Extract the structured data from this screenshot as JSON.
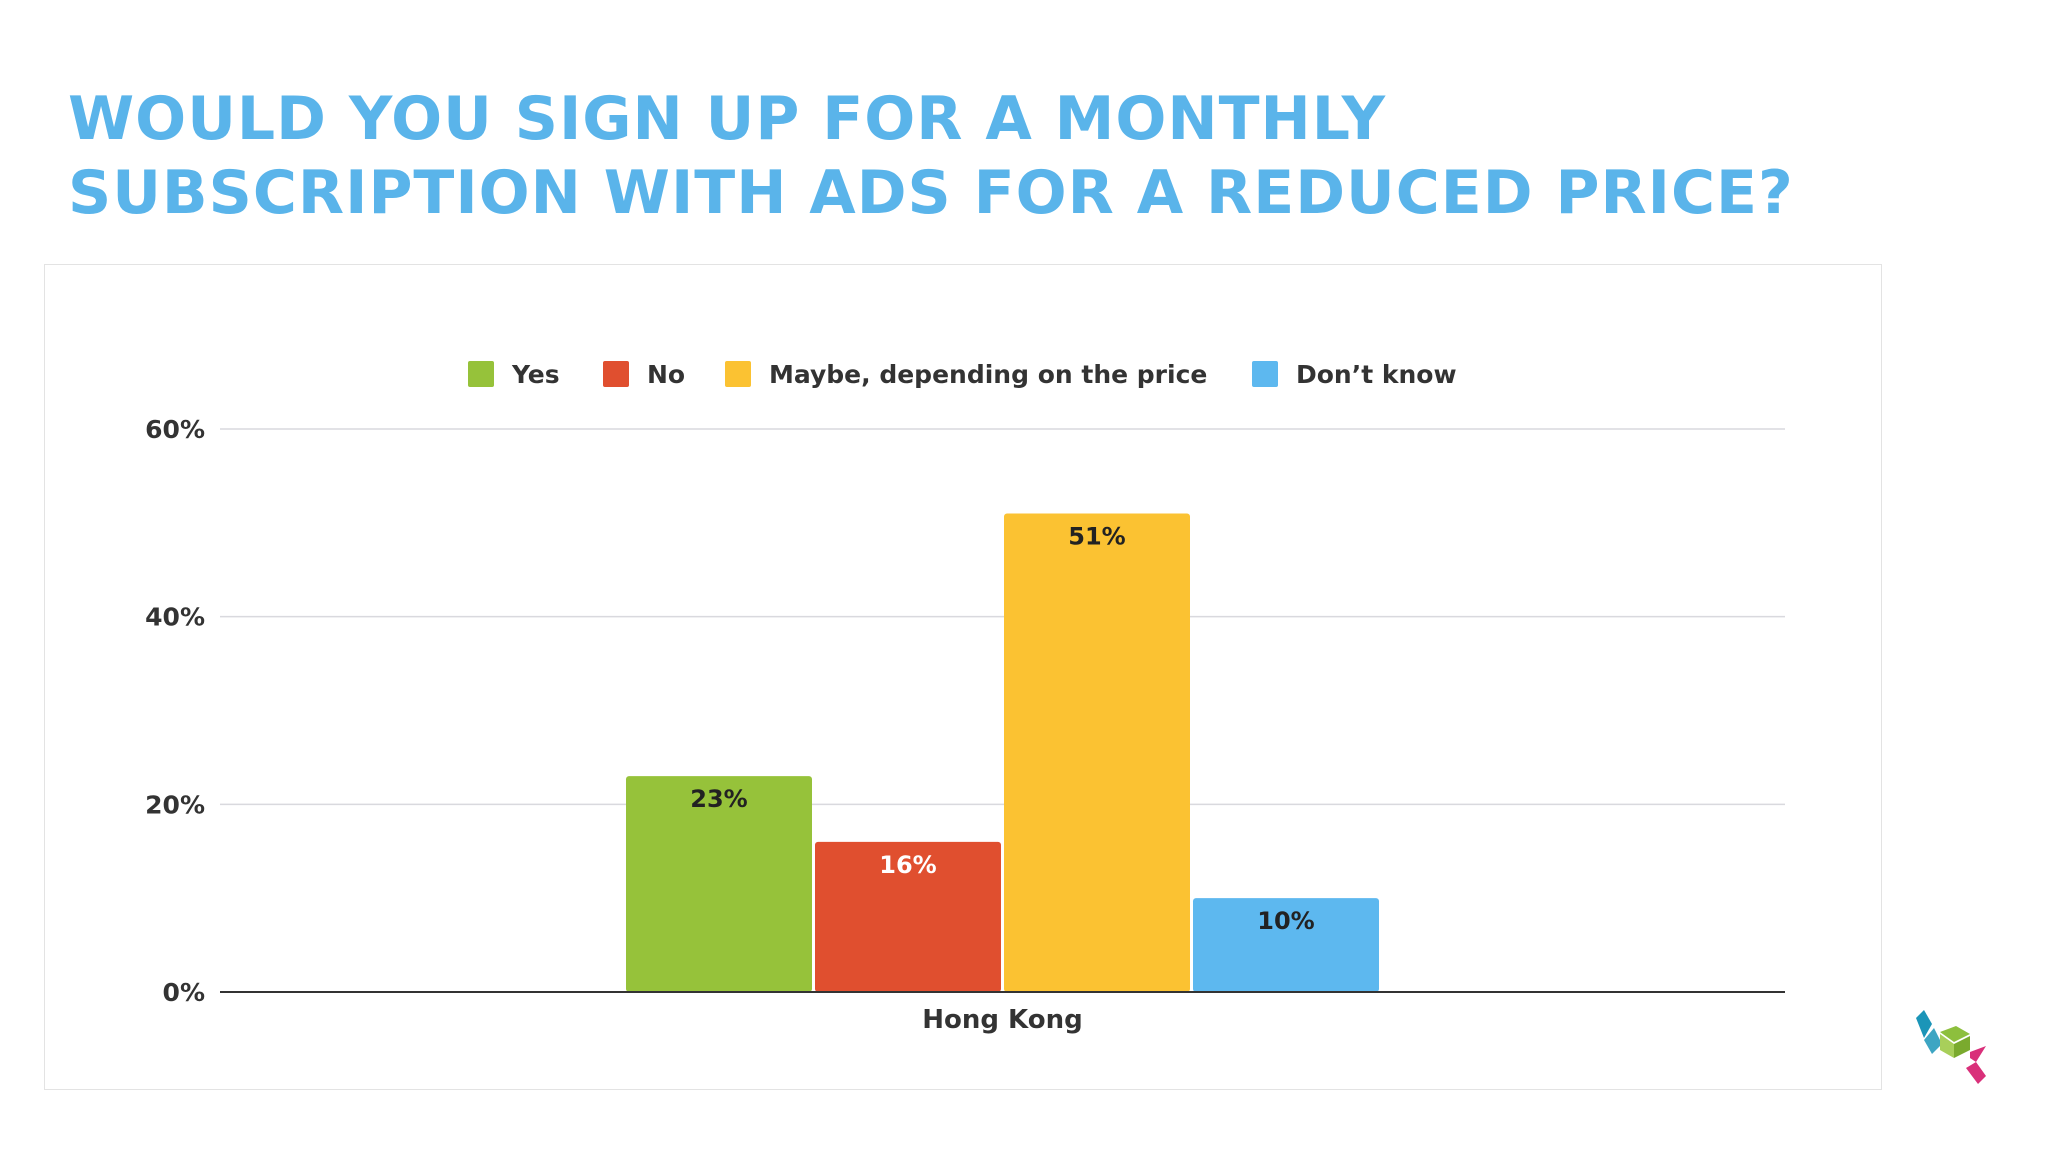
{
  "slide": {
    "title_line1": "WOULD YOU SIGN UP FOR A MONTHLY",
    "title_line2": "SUBSCRIPTION WITH ADS FOR A REDUCED PRICE?",
    "title_color": "#5ab4ea"
  },
  "logo": {
    "icon": "cube-stack-logo",
    "colors": [
      "#1b95b8",
      "#8dbf3d",
      "#d9307a"
    ]
  },
  "chart_data": {
    "type": "bar",
    "categories": [
      "Hong Kong"
    ],
    "series": [
      {
        "name": "Yes",
        "values": [
          23
        ],
        "color": "#96c23a",
        "label_color": "#222222"
      },
      {
        "name": "No",
        "values": [
          16
        ],
        "color": "#e04f2f",
        "label_color": "#ffffff"
      },
      {
        "name": "Maybe, depending on the price",
        "values": [
          51
        ],
        "color": "#fbc232",
        "label_color": "#222222"
      },
      {
        "name": "Don’t know",
        "values": [
          10
        ],
        "color": "#5db8ef",
        "label_color": "#222222"
      }
    ],
    "data_labels": [
      "23%",
      "16%",
      "51%",
      "10%"
    ],
    "yticks": [
      0,
      20,
      40,
      60
    ],
    "ytick_labels": [
      "0%",
      "20%",
      "40%",
      "60%"
    ],
    "ylim": [
      0,
      60
    ],
    "grid": true,
    "legend_position": "top",
    "xlabel": "",
    "ylabel": ""
  }
}
